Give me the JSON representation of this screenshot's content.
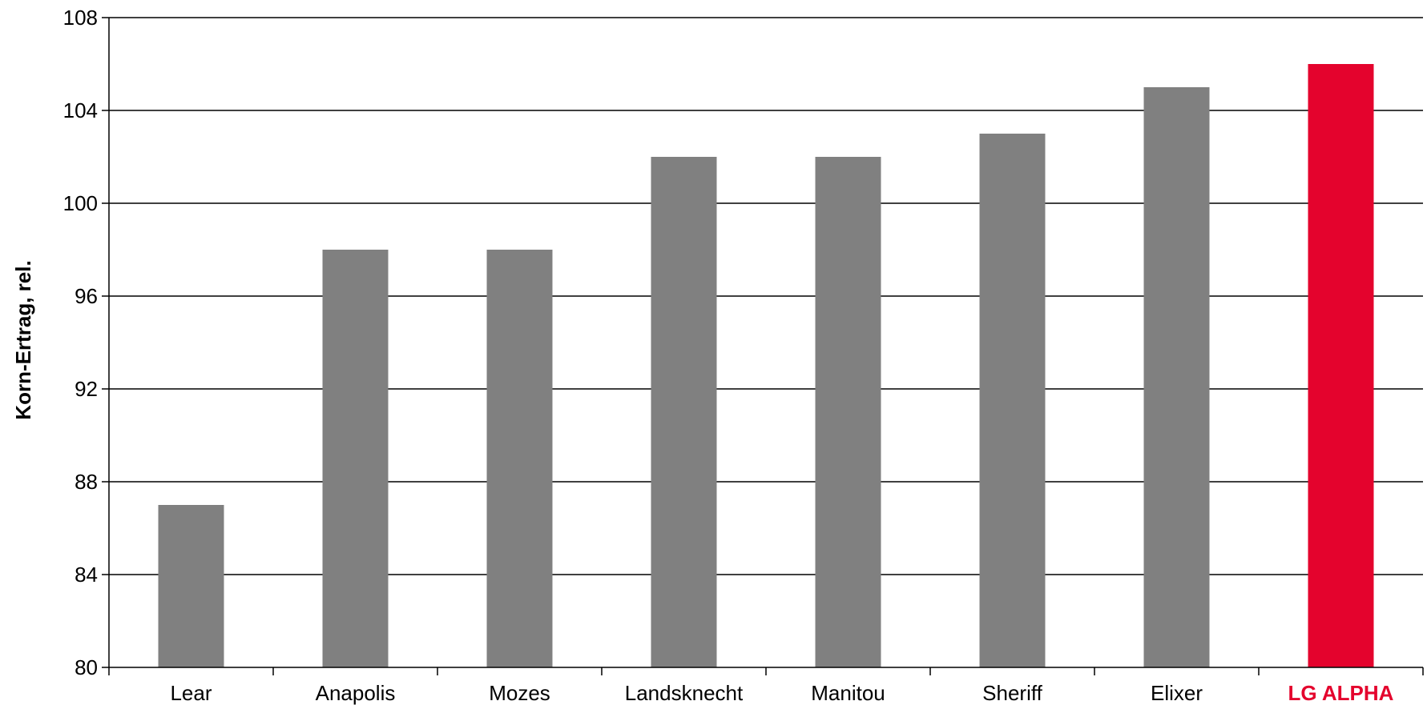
{
  "chart_data": {
    "type": "bar",
    "title": "",
    "xlabel": "",
    "ylabel": "Korn-Ertrag, rel.",
    "categories": [
      "Lear",
      "Anapolis",
      "Mozes",
      "Landsknecht",
      "Manitou",
      "Sheriff",
      "Elixer",
      "LG ALPHA"
    ],
    "values": [
      87,
      98,
      98,
      102,
      102,
      103,
      105,
      106
    ],
    "ylim": [
      80,
      108
    ],
    "yticks": [
      80,
      84,
      88,
      92,
      96,
      100,
      104,
      108
    ],
    "grid": true,
    "highlight_category": "LG ALPHA",
    "colors": {
      "bar": "#808080",
      "highlight": "#e4032d",
      "grid": "#000000",
      "text": "#000000"
    }
  }
}
